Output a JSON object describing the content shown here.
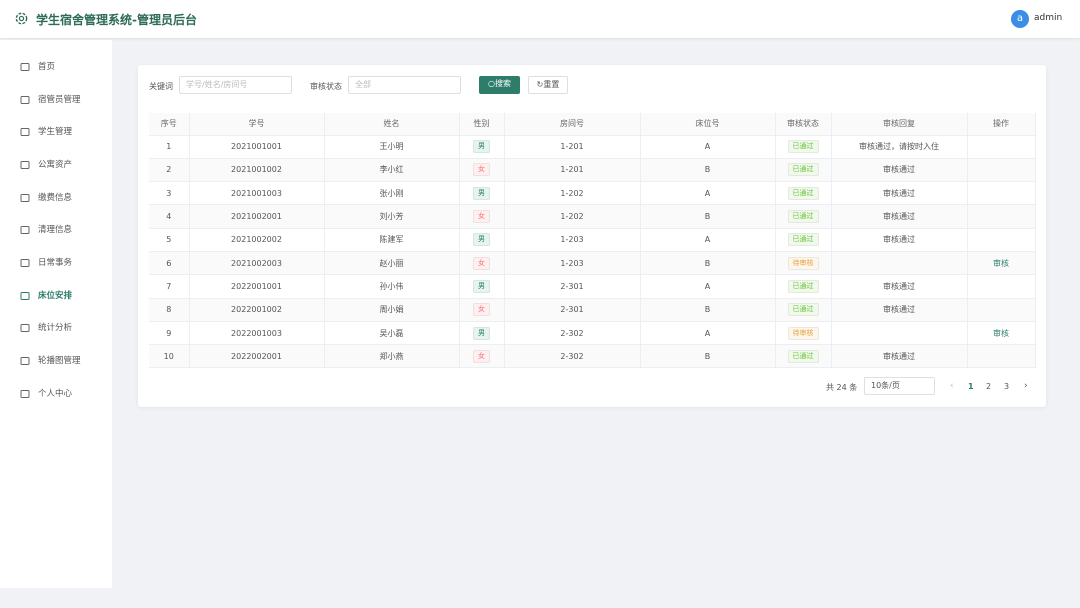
{
  "header": {
    "title": "学生宿舍管理系统-管理员后台",
    "avatar": "a",
    "user": "admin"
  },
  "sidebar": {
    "active": 7,
    "items": [
      "首页",
      "宿管员管理",
      "学生管理",
      "公寓资产",
      "缴费信息",
      "清理信息",
      "日常事务",
      "床位安排",
      "统计分析",
      "轮播图管理",
      "个人中心"
    ]
  },
  "search": {
    "keyword_label": "关键词",
    "keyword_placeholder": "学号/姓名/房间号",
    "status_label": "审核状态",
    "status_value": "全部",
    "search_button": "搜索",
    "reset_button": "重置"
  },
  "table": {
    "columns": [
      "序号",
      "学号",
      "姓名",
      "性别",
      "房间号",
      "床位号",
      "审核状态",
      "审核回复",
      "操作"
    ],
    "rows": [
      [
        1,
        "2021001001",
        "王小明",
        {
          "text": "男",
          "color": "#2e7d6b",
          "background": "#e6f4ee"
        },
        "1-201",
        "A",
        {
          "text": "已通过",
          "color": "#67c23a",
          "background": "#f0f9eb"
        },
        "审核通过，请按时入住",
        null
      ],
      [
        2,
        "2021001002",
        "李小红",
        {
          "text": "女",
          "color": "#f56c6c",
          "background": "#fef0f0"
        },
        "1-201",
        "B",
        {
          "text": "已通过",
          "color": "#67c23a",
          "background": "#f0f9eb"
        },
        "审核通过",
        null
      ],
      [
        3,
        "2021001003",
        "张小刚",
        {
          "text": "男",
          "color": "#2e7d6b",
          "background": "#e6f4ee"
        },
        "1-202",
        "A",
        {
          "text": "已通过",
          "color": "#67c23a",
          "background": "#f0f9eb"
        },
        "审核通过",
        null
      ],
      [
        4,
        "2021002001",
        "刘小芳",
        {
          "text": "女",
          "color": "#f56c6c",
          "background": "#fef0f0"
        },
        "1-202",
        "B",
        {
          "text": "已通过",
          "color": "#67c23a",
          "background": "#f0f9eb"
        },
        "审核通过",
        null
      ],
      [
        5,
        "2021002002",
        "陈建军",
        {
          "text": "男",
          "color": "#2e7d6b",
          "background": "#e6f4ee"
        },
        "1-203",
        "A",
        {
          "text": "已通过",
          "color": "#67c23a",
          "background": "#f0f9eb"
        },
        "审核通过",
        null
      ],
      [
        6,
        "2021002003",
        "赵小丽",
        {
          "text": "女",
          "color": "#f56c6c",
          "background": "#fef0f0"
        },
        "1-203",
        "B",
        {
          "text": "待审核",
          "color": "#e6a23c",
          "background": "#fdf6ec"
        },
        null,
        "审核"
      ],
      [
        7,
        "2022001001",
        "孙小伟",
        {
          "text": "男",
          "color": "#2e7d6b",
          "background": "#e6f4ee"
        },
        "2-301",
        "A",
        {
          "text": "已通过",
          "color": "#67c23a",
          "background": "#f0f9eb"
        },
        "审核通过",
        null
      ],
      [
        8,
        "2022001002",
        "周小娟",
        {
          "text": "女",
          "color": "#f56c6c",
          "background": "#fef0f0"
        },
        "2-301",
        "B",
        {
          "text": "已通过",
          "color": "#67c23a",
          "background": "#f0f9eb"
        },
        "审核通过",
        null
      ],
      [
        9,
        "2022001003",
        "吴小磊",
        {
          "text": "男",
          "color": "#2e7d6b",
          "background": "#e6f4ee"
        },
        "2-302",
        "A",
        {
          "text": "待审核",
          "color": "#e6a23c",
          "background": "#fdf6ec"
        },
        null,
        "审核"
      ],
      [
        10,
        "2022002001",
        "郑小燕",
        {
          "text": "女",
          "color": "#f56c6c",
          "background": "#fef0f0"
        },
        "2-302",
        "B",
        {
          "text": "已通过",
          "color": "#67c23a",
          "background": "#f0f9eb"
        },
        "审核通过",
        null
      ]
    ]
  },
  "pagination": {
    "total": "共 24 条",
    "page_size": "10条/页",
    "pages": [
      1,
      2,
      3
    ],
    "current": 1
  }
}
